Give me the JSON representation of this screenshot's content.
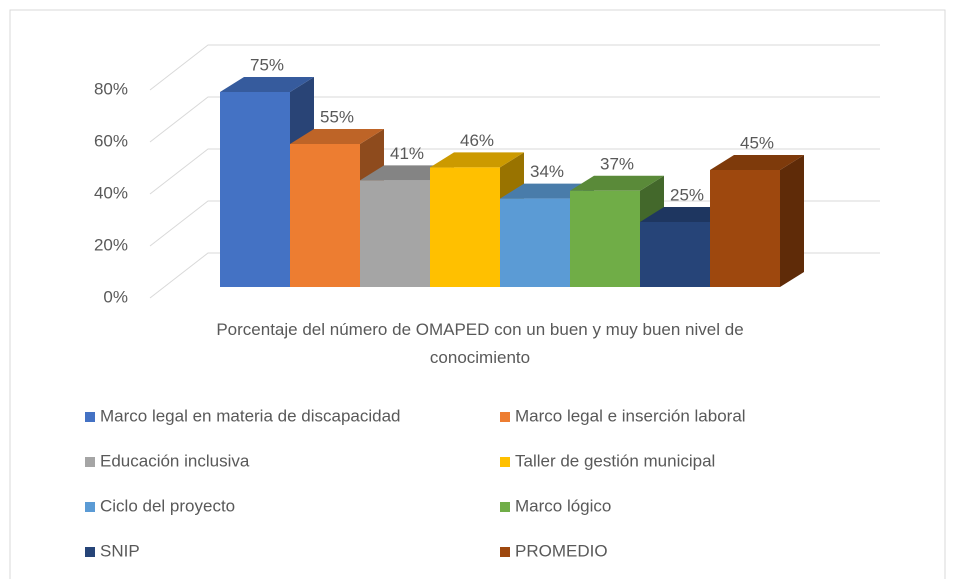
{
  "chart_data": {
    "type": "bar3d",
    "categories": [
      "Porcentaje del número de OMAPED con un buen y muy buen nivel de conocimiento"
    ],
    "ylim": [
      0,
      80
    ],
    "yticks": [
      {
        "value": 0,
        "label": "0%"
      },
      {
        "value": 20,
        "label": "20%"
      },
      {
        "value": 40,
        "label": "40%"
      },
      {
        "value": 60,
        "label": "60%"
      },
      {
        "value": 80,
        "label": "80%"
      }
    ],
    "grid": true,
    "legend": "bottom",
    "series": [
      {
        "name": "Marco legal en materia de discapacidad",
        "color": "#4472c4",
        "values": [
          75
        ],
        "value_labels": [
          "75%"
        ]
      },
      {
        "name": "Marco legal e inserción laboral",
        "color": "#ed7d31",
        "values": [
          55
        ],
        "value_labels": [
          "55%"
        ]
      },
      {
        "name": "Educación inclusiva",
        "color": "#a5a5a5",
        "values": [
          41
        ],
        "value_labels": [
          "41%"
        ]
      },
      {
        "name": "Taller de gestión municipal",
        "color": "#ffc000",
        "values": [
          46
        ],
        "value_labels": [
          "46%"
        ]
      },
      {
        "name": "Ciclo del proyecto",
        "color": "#5b9bd5",
        "values": [
          34
        ],
        "value_labels": [
          "34%"
        ]
      },
      {
        "name": "Marco lógico",
        "color": "#70ad47",
        "values": [
          37
        ],
        "value_labels": [
          "37%"
        ]
      },
      {
        "name": "SNIP",
        "color": "#264478",
        "values": [
          25
        ],
        "value_labels": [
          "25%"
        ]
      },
      {
        "name": "PROMEDIO",
        "color": "#9e480e",
        "values": [
          45
        ],
        "value_labels": [
          "45%"
        ]
      }
    ]
  }
}
